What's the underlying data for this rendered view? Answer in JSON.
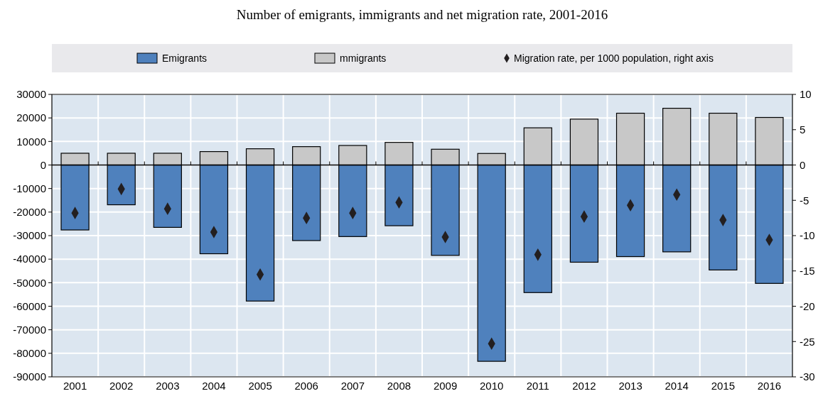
{
  "chart_data": {
    "type": "bar",
    "title": "Number of emigrants, immigrants and net migration rate, 2001-2016",
    "categories": [
      "2001",
      "2002",
      "2003",
      "2004",
      "2005",
      "2006",
      "2007",
      "2008",
      "2009",
      "2010",
      "2011",
      "2012",
      "2013",
      "2014",
      "2015",
      "2016"
    ],
    "stacked": true,
    "series": [
      {
        "name": "Emigrants",
        "color": "#4f81bd",
        "values": [
          -27600,
          -16900,
          -26500,
          -37700,
          -57800,
          -32100,
          -30400,
          -25800,
          -38400,
          -83400,
          -54200,
          -41300,
          -38900,
          -36900,
          -44600,
          -50300
        ]
      },
      {
        "name": "mmigrants",
        "color": "#c8c8c8",
        "values": [
          5000,
          5000,
          5000,
          5700,
          6900,
          7800,
          8300,
          9600,
          6700,
          4900,
          15800,
          19500,
          22000,
          24100,
          22000,
          20200
        ]
      },
      {
        "name": "Migration rate, per 1000 population, right axis",
        "type": "scatter",
        "axis": "y2",
        "marker": "diamond",
        "color": "#231f20",
        "values": [
          -6.8,
          -3.4,
          -6.2,
          -9.5,
          -15.5,
          -7.5,
          -6.8,
          -5.3,
          -10.2,
          -25.3,
          -12.7,
          -7.3,
          -5.7,
          -4.2,
          -7.8,
          -10.6
        ]
      }
    ],
    "ylim": [
      -90000,
      30000
    ],
    "yticks": [
      -90000,
      -80000,
      -70000,
      -60000,
      -50000,
      -40000,
      -30000,
      -20000,
      -10000,
      0,
      10000,
      20000,
      30000
    ],
    "y2lim": [
      -30,
      10
    ],
    "y2ticks": [
      -30,
      -25,
      -20,
      -15,
      -10,
      -5,
      0,
      5,
      10
    ],
    "grid": true,
    "legend": "top"
  }
}
